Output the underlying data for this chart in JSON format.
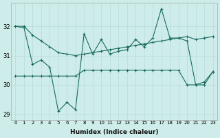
{
  "xlabel": "Humidex (Indice chaleur)",
  "background_color": "#cdecea",
  "grid_color": "#b8dbd8",
  "line_color": "#1a6b5e",
  "x": [
    0,
    1,
    2,
    3,
    4,
    5,
    6,
    7,
    8,
    9,
    10,
    11,
    12,
    13,
    14,
    15,
    16,
    17,
    18,
    19,
    20,
    21,
    22,
    23
  ],
  "series_top": [
    32.0,
    32.0,
    31.7,
    31.5,
    31.3,
    31.1,
    31.05,
    31.0,
    31.05,
    31.1,
    31.15,
    31.2,
    31.25,
    31.3,
    31.35,
    31.4,
    31.45,
    31.5,
    31.55,
    31.6,
    31.65,
    31.55,
    31.6,
    31.65
  ],
  "series_mid": [
    32.0,
    31.95,
    30.7,
    30.85,
    30.6,
    29.1,
    29.4,
    29.15,
    31.75,
    31.05,
    31.55,
    31.05,
    31.15,
    31.2,
    31.55,
    31.3,
    31.6,
    32.6,
    31.6,
    31.6,
    31.5,
    30.0,
    30.0,
    30.45
  ],
  "series_bot": [
    30.3,
    30.3,
    30.3,
    30.3,
    30.3,
    30.3,
    30.3,
    30.3,
    30.5,
    30.5,
    30.5,
    30.5,
    30.5,
    30.5,
    30.5,
    30.5,
    30.5,
    30.5,
    30.5,
    30.5,
    30.0,
    30.0,
    30.1,
    30.45
  ],
  "ylim": [
    28.8,
    32.8
  ],
  "yticks": [
    29,
    30,
    31,
    32
  ],
  "xticks": [
    0,
    1,
    2,
    3,
    4,
    5,
    6,
    7,
    8,
    9,
    10,
    11,
    12,
    13,
    14,
    15,
    16,
    17,
    18,
    19,
    20,
    21,
    22,
    23
  ]
}
